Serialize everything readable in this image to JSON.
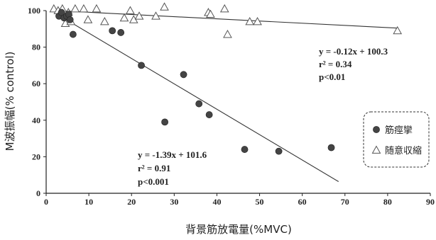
{
  "chart_data": {
    "type": "scatter",
    "xlabel": "背景筋放電量(%MVC)",
    "ylabel": "M波振幅(% control)",
    "xlim": [
      0,
      90
    ],
    "ylim": [
      0,
      100
    ],
    "xticks": [
      0,
      10,
      20,
      30,
      40,
      50,
      60,
      70,
      80,
      90
    ],
    "yticks": [
      0,
      20,
      40,
      60,
      80,
      100
    ],
    "legend": {
      "position": "right",
      "entries": [
        "筋痙攣",
        "随意収縮"
      ]
    },
    "series": [
      {
        "name": "筋痙攣",
        "marker": "circle",
        "color": "#444444",
        "points": [
          [
            3,
            97
          ],
          [
            3.6,
            99
          ],
          [
            4.2,
            96
          ],
          [
            4.8,
            97
          ],
          [
            5.3,
            98
          ],
          [
            5.6,
            95
          ],
          [
            6.3,
            87
          ],
          [
            15.5,
            89
          ],
          [
            17.5,
            88
          ],
          [
            22.3,
            70
          ],
          [
            27.8,
            39
          ],
          [
            32.2,
            65
          ],
          [
            35.8,
            49
          ],
          [
            38.2,
            43
          ],
          [
            46.5,
            24
          ],
          [
            54.5,
            23
          ],
          [
            66.8,
            25
          ]
        ],
        "fit": {
          "slope": -1.39,
          "intercept": 101.6,
          "x_range": [
            4.5,
            68.5
          ]
        },
        "annotation": [
          "y = -1.39x + 101.6",
          "r² = 0.91",
          "p<0.001"
        ]
      },
      {
        "name": "随意収縮",
        "marker": "triangle",
        "color": "#555555",
        "points": [
          [
            1.8,
            101
          ],
          [
            2.8,
            100
          ],
          [
            3.8,
            101
          ],
          [
            4.5,
            93
          ],
          [
            5.2,
            99
          ],
          [
            5.8,
            94
          ],
          [
            6.8,
            101
          ],
          [
            8.8,
            101
          ],
          [
            9.8,
            95
          ],
          [
            11.8,
            101
          ],
          [
            13.7,
            94
          ],
          [
            18.3,
            96
          ],
          [
            19.7,
            100
          ],
          [
            20.5,
            95
          ],
          [
            21.8,
            97
          ],
          [
            25.7,
            97
          ],
          [
            27.7,
            102
          ],
          [
            38.0,
            99
          ],
          [
            38.5,
            98
          ],
          [
            41.8,
            101
          ],
          [
            42.5,
            87
          ],
          [
            47.7,
            94
          ],
          [
            49.5,
            94
          ],
          [
            82.3,
            89
          ]
        ],
        "fit": {
          "slope": -0.12,
          "intercept": 100.3,
          "x_range": [
            1.5,
            82.3
          ]
        },
        "annotation": [
          "y = -0.12x + 100.3",
          "r² = 0.34",
          "p<0.01"
        ]
      }
    ]
  }
}
